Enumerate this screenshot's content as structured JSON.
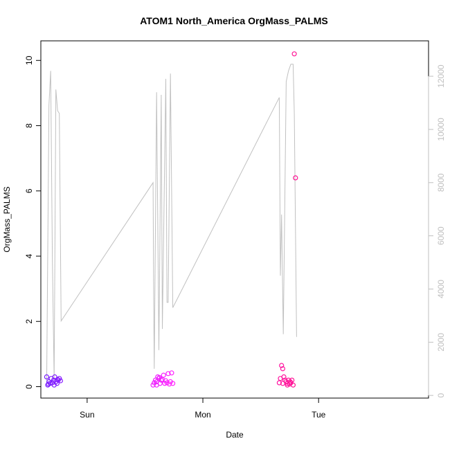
{
  "chart_data": {
    "type": "scatter",
    "title": "ATOM1 North_America OrgMass_PALMS",
    "xlabel": "Date",
    "ylabel": "OrgMass_PALMS",
    "x_ticks": [
      "Sun",
      "Mon",
      "Tue"
    ],
    "x_tick_positions": [
      1,
      2,
      3
    ],
    "xlim": [
      0.6,
      3.95
    ],
    "ylim": [
      -0.35,
      10.6
    ],
    "y_ticks": [
      0,
      2,
      4,
      6,
      8,
      10
    ],
    "y2lim": [
      -100,
      13330
    ],
    "y2_ticks": [
      0,
      2000,
      4000,
      6000,
      8000,
      10000,
      12000
    ],
    "grid": false,
    "legend": "none",
    "colors": {
      "line": "#c0c0c0",
      "point_start": "#7a1fff",
      "point_mid": "#ff22ff",
      "point_end": "#ff1493",
      "axis": "#000000",
      "axis_right": "#bfbfbf"
    },
    "series": [
      {
        "type": "line",
        "axis": "right",
        "points": [
          [
            0.65,
            420
          ],
          [
            0.67,
            10900
          ],
          [
            0.685,
            12200
          ],
          [
            0.7,
            5000
          ],
          [
            0.715,
            600
          ],
          [
            0.73,
            11500
          ],
          [
            0.745,
            10700
          ],
          [
            0.76,
            10600
          ],
          [
            0.775,
            2800
          ],
          [
            1.57,
            8000
          ],
          [
            1.575,
            3500
          ],
          [
            1.58,
            1000
          ],
          [
            1.6,
            11400
          ],
          [
            1.62,
            1700
          ],
          [
            1.64,
            11300
          ],
          [
            1.65,
            2500
          ],
          [
            1.68,
            11900
          ],
          [
            1.69,
            3500
          ],
          [
            1.7,
            3500
          ],
          [
            1.72,
            12100
          ],
          [
            1.74,
            3300
          ],
          [
            2.66,
            11200
          ],
          [
            2.67,
            4500
          ],
          [
            2.68,
            6800
          ],
          [
            2.695,
            2300
          ],
          [
            2.72,
            11800
          ],
          [
            2.74,
            12200
          ],
          [
            2.76,
            12450
          ],
          [
            2.78,
            12450
          ],
          [
            2.79,
            10600
          ],
          [
            2.81,
            2200
          ]
        ]
      },
      {
        "type": "scatter",
        "axis": "left",
        "points": [
          [
            0.65,
            0.3
          ],
          [
            0.66,
            0.05
          ],
          [
            0.67,
            0.15
          ],
          [
            0.68,
            0.1
          ],
          [
            0.69,
            0.25
          ],
          [
            0.7,
            0.12
          ],
          [
            0.71,
            0.2
          ],
          [
            0.72,
            0.3
          ],
          [
            0.73,
            0.15
          ],
          [
            0.74,
            0.1
          ],
          [
            0.75,
            0.2
          ],
          [
            0.76,
            0.25
          ],
          [
            0.77,
            0.18
          ],
          [
            0.665,
            0.08
          ],
          [
            0.715,
            0.05
          ],
          [
            0.745,
            0.22
          ],
          [
            1.57,
            0.05
          ],
          [
            1.58,
            0.12
          ],
          [
            1.59,
            0.2
          ],
          [
            1.6,
            0.15
          ],
          [
            1.61,
            0.3
          ],
          [
            1.62,
            0.25
          ],
          [
            1.63,
            0.1
          ],
          [
            1.64,
            0.2
          ],
          [
            1.65,
            0.22
          ],
          [
            1.66,
            0.35
          ],
          [
            1.67,
            0.1
          ],
          [
            1.68,
            0.18
          ],
          [
            1.69,
            0.12
          ],
          [
            1.7,
            0.4
          ],
          [
            1.71,
            0.08
          ],
          [
            1.72,
            0.15
          ],
          [
            1.73,
            0.42
          ],
          [
            1.74,
            0.1
          ],
          [
            1.6,
            0.05
          ],
          [
            1.625,
            0.28
          ],
          [
            2.66,
            0.12
          ],
          [
            2.67,
            0.25
          ],
          [
            2.68,
            0.65
          ],
          [
            2.69,
            0.55
          ],
          [
            2.7,
            0.3
          ],
          [
            2.71,
            0.2
          ],
          [
            2.72,
            0.15
          ],
          [
            2.73,
            0.1
          ],
          [
            2.74,
            0.2
          ],
          [
            2.75,
            0.08
          ],
          [
            2.76,
            0.12
          ],
          [
            2.77,
            0.2
          ],
          [
            2.78,
            0.05
          ],
          [
            2.79,
            10.2
          ],
          [
            2.8,
            6.4
          ],
          [
            2.69,
            0.1
          ],
          [
            2.73,
            0.05
          ],
          [
            2.755,
            0.15
          ]
        ]
      }
    ]
  }
}
